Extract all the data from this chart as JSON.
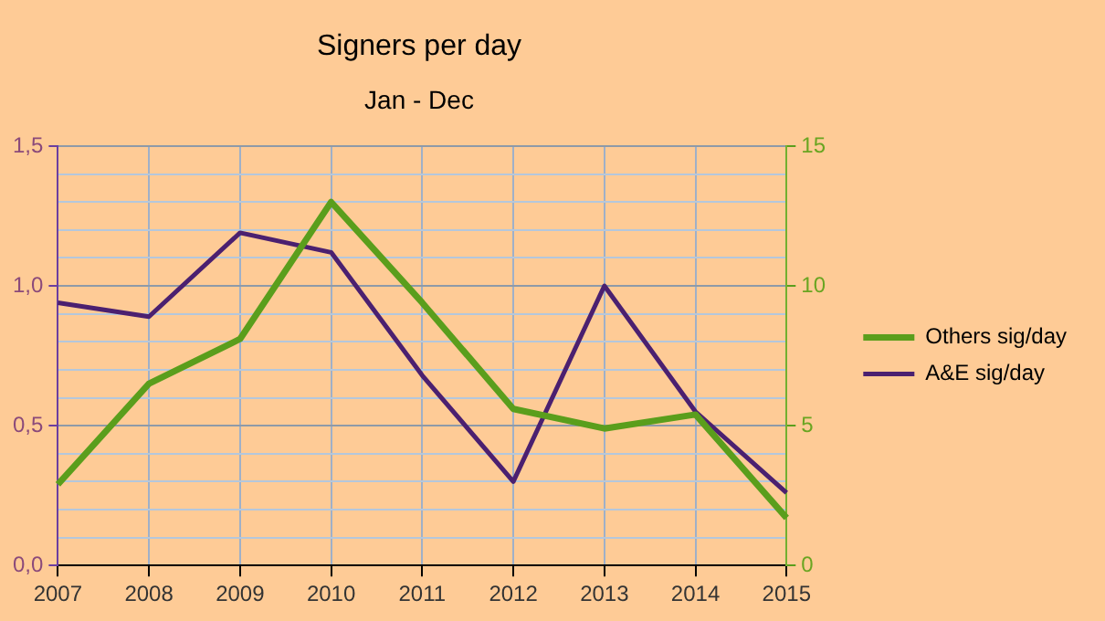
{
  "chart_data": {
    "type": "line",
    "title": "Signers per day",
    "subtitle": "Jan - Dec",
    "categories": [
      "2007",
      "2008",
      "2009",
      "2010",
      "2011",
      "2012",
      "2013",
      "2014",
      "2015"
    ],
    "series": [
      {
        "name": "Others sig/day",
        "color": "#5a9e1c",
        "axis": "y2",
        "values": [
          2.9,
          6.5,
          8.1,
          13,
          9.4,
          5.6,
          4.9,
          5.4,
          1.7
        ]
      },
      {
        "name": "A&E sig/day",
        "color": "#4b2070",
        "values": [
          0.94,
          0.89,
          1.19,
          1.12,
          0.68,
          0.3,
          1.0,
          0.55,
          0.26
        ]
      }
    ],
    "ylim": [
      0,
      1.5
    ],
    "yticks": [
      {
        "value": 0,
        "label": "0,0"
      },
      {
        "value": 0.1,
        "label": null
      },
      {
        "value": 0.2,
        "label": null
      },
      {
        "value": 0.3,
        "label": null
      },
      {
        "value": 0.4,
        "label": null
      },
      {
        "value": 0.5,
        "label": "0,5"
      },
      {
        "value": 0.6,
        "label": null
      },
      {
        "value": 0.7,
        "label": null
      },
      {
        "value": 0.8,
        "label": null
      },
      {
        "value": 0.9,
        "label": null
      },
      {
        "value": 1,
        "label": "1,0"
      },
      {
        "value": 1.1,
        "label": null
      },
      {
        "value": 1.2,
        "label": null
      },
      {
        "value": 1.3,
        "label": null
      },
      {
        "value": 1.4,
        "label": null
      },
      {
        "value": 1.5,
        "label": "1,5"
      }
    ],
    "y2lim": [
      0,
      15
    ],
    "y2ticks": [
      0,
      5,
      10,
      15
    ],
    "grid": true,
    "legend": "right",
    "marker": "none",
    "line_style": "solid"
  }
}
